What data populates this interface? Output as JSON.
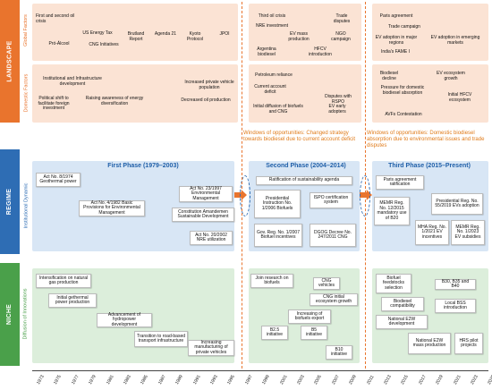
{
  "bands": {
    "landscape": {
      "label": "LANDSCAPE",
      "color": "#e9742d",
      "fill": "#fbe3d4"
    },
    "regime": {
      "label": "REGIME",
      "color": "#2e6db4",
      "fill": "#d8e6f5"
    },
    "niche": {
      "label": "NICHE",
      "color": "#4aa04a",
      "fill": "#dceedb"
    }
  },
  "sublabels": {
    "global": "Global Factors",
    "domestic": "Domestic Factors",
    "institutional": "Institutional Dynamic",
    "diffusion": "Diffusion of Innovations"
  },
  "landscape_global": [
    "First and second oil crisis",
    "US Energy Tax",
    "Pró-Álcool",
    "CNG Initiatives",
    "Brutland Report",
    "Agenda 21",
    "Kyoto Protocol",
    "JPOI",
    "Third oil crisis",
    "NRE investment",
    "Trade disputes",
    "EV mass production",
    "NGO campaign",
    "Argentina biodiesel",
    "HFCV introduction",
    "Paris agreement",
    "Trade campaign",
    "EV adoption in major regions",
    "EV adoption in emerging markets",
    "India's FAME I"
  ],
  "landscape_domestic": [
    "Institutional and Infrastructure development",
    "Political shift to facilitate foreign investment",
    "Raising awareness of energy diversification",
    "Increased private vehicle population",
    "Decreased oil production",
    "Petroleum reliance",
    "Current account deficit",
    "Disputes with RSPO",
    "Initial diffusion of biofuels and CNG",
    "EV early adopters",
    "Biodiesel decline",
    "EV ecosystem growth",
    "Pressure for domestic biodiesel absorption",
    "Initial HFCV ecosystem",
    "AVFs Contestation"
  ],
  "windows": [
    "Windows of opportunities: Changed strategy towards biodiesel due to current account deficit",
    "Windows of opportunities: Domestic biodiesel absorption due to environmental issues and trade disputes"
  ],
  "phases": [
    "First Phase (1979–2003)",
    "Second Phase (2004–2014)",
    "Third Phase (2015–Present)"
  ],
  "regime": [
    "Act No. 8/1974 Geothermal power",
    "Act No. 4/1982 Basic Provisions for Environmental Management",
    "Act No. 23/1997 Environmental Management",
    "Constitution Amandemen Sustainable Development",
    "Act No. 20/2002 NRE utilization",
    "Ratification of sustainability agenda",
    "Presidential Instruction No. 1/2006 Biofuels",
    "ISPO certification system",
    "Gov. Reg. No. 1/2007 Biofuel incentives",
    "DGOG Decree No. 247/2011 CNG",
    "Paris agreement ratification",
    "MEMR Reg. No. 12/2015 mandatory use of B20",
    "Presidential Reg. No. 55/2019 EVs adoption",
    "MHA Reg. No. 1/2021 EV incentives",
    "MEMR Reg. No. 1/2023 EV subsidies"
  ],
  "niche": [
    "Intensification on natural gas production",
    "Initial gethermal power production",
    "Advancement of hydropower development",
    "Transition to road-based transport infrastructure",
    "Increasing manufacturing of private vehicles",
    "Join research on biofuels",
    "CNG vehicles",
    "CNG initial ecosystem growth",
    "Increasing of biofuels export",
    "B2.5 initiative",
    "B5 initiative",
    "B10 initiative",
    "Biofuel feedstocks selection",
    "Biodiesel compatibility",
    "B30, B35 and B40",
    "Local BSS introduction",
    "National E2W development",
    "National E2W mass production",
    "HRS pilot projects"
  ],
  "years": [
    "1973",
    "1975",
    "1977",
    "1979",
    "1981",
    "1983",
    "1985",
    "1987",
    "1989",
    "1991",
    "1993",
    "1995",
    "1997",
    "1999",
    "2001",
    "2003",
    "2005",
    "2007",
    "2009",
    "2011",
    "2013",
    "2015",
    "2017",
    "2019",
    "2021",
    "2023",
    "2025"
  ]
}
